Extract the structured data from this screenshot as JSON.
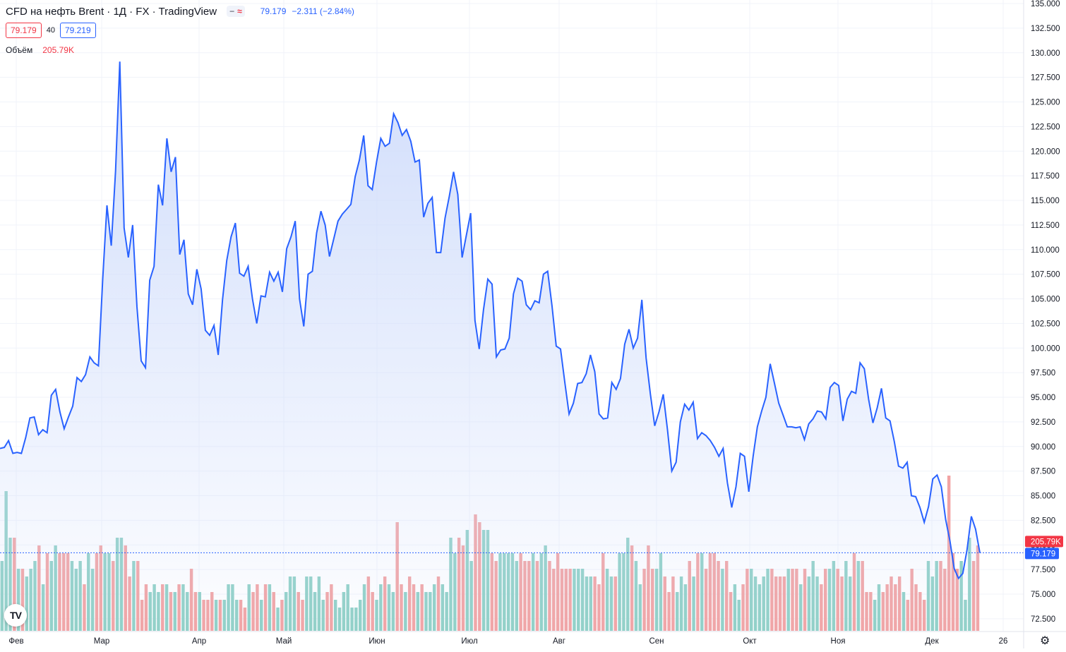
{
  "header": {
    "title": "CFD на нефть Brent · 1Д · FX  · TradingView",
    "pill_minus": "−",
    "pill_wave": "≈",
    "last_price": "79.179",
    "change": "−2.311 (−2.84%)"
  },
  "quote": {
    "bid": "79.179",
    "spread": "40",
    "ask": "79.219"
  },
  "volume": {
    "label": "Объём",
    "value": "205.79K"
  },
  "logo_text": "TV",
  "settings_icon": "gear-icon",
  "colors": {
    "line": "#2962ff",
    "area_top": "#cfdcfb",
    "vol_up": "#8fd0c6",
    "vol_down": "#f2a3a3",
    "tag_red": "#f23645",
    "tag_blue": "#2962ff"
  },
  "chart_data": {
    "type": "area",
    "symbol": "Brent CFD",
    "y_scale": "linear",
    "ylim": [
      70.5,
      135.5
    ],
    "y_ticks": [
      "72.500",
      "75.000",
      "77.500",
      "80.000",
      "82.500",
      "85.000",
      "87.500",
      "90.000",
      "92.500",
      "95.000",
      "97.500",
      "100.000",
      "102.500",
      "105.000",
      "107.500",
      "110.000",
      "112.500",
      "115.000",
      "117.500",
      "120.000",
      "122.500",
      "125.000",
      "127.500",
      "130.000",
      "132.500",
      "135.000"
    ],
    "x_ticks": [
      "Фев",
      "Мар",
      "Апр",
      "Май",
      "Июн",
      "Июл",
      "Авг",
      "Сен",
      "Окт",
      "Ноя",
      "Дек",
      "26"
    ],
    "last_price_tag": "79.179",
    "volume_tag": "205.79K",
    "price_series": [
      89.8,
      89.9,
      90.6,
      89.3,
      89.4,
      89.3,
      90.9,
      92.9,
      93.0,
      91.2,
      91.7,
      91.4,
      95.2,
      95.8,
      93.5,
      91.8,
      93.0,
      94.1,
      97.0,
      96.6,
      97.3,
      99.1,
      98.5,
      98.2,
      107.0,
      114.5,
      110.4,
      118.0,
      129.1,
      112.2,
      109.2,
      112.5,
      104.2,
      98.7,
      98.0,
      106.9,
      108.3,
      116.6,
      114.5,
      121.3,
      117.9,
      119.4,
      109.5,
      111.0,
      105.5,
      104.4,
      108.0,
      106.0,
      101.8,
      101.3,
      102.3,
      99.3,
      104.9,
      108.9,
      111.3,
      112.7,
      107.6,
      107.3,
      108.3,
      105.0,
      102.5,
      105.3,
      105.2,
      107.7,
      106.8,
      107.7,
      105.7,
      110.1,
      111.3,
      112.9,
      105.0,
      102.2,
      107.5,
      107.8,
      111.7,
      113.9,
      112.5,
      109.3,
      111.1,
      112.9,
      113.6,
      114.1,
      114.6,
      117.4,
      119.1,
      121.6,
      116.5,
      116.1,
      118.9,
      121.3,
      120.5,
      120.8,
      123.8,
      122.9,
      121.6,
      122.2,
      121.0,
      118.9,
      119.1,
      113.3,
      114.7,
      115.3,
      109.7,
      109.7,
      113.2,
      115.4,
      117.9,
      115.6,
      109.2,
      111.5,
      113.7,
      102.8,
      99.9,
      103.9,
      107.0,
      106.5,
      99.1,
      99.8,
      99.9,
      101.0,
      105.5,
      107.1,
      106.8,
      104.4,
      103.9,
      104.8,
      104.6,
      107.5,
      107.8,
      104.3,
      100.2,
      99.9,
      96.5,
      93.3,
      94.4,
      96.4,
      96.5,
      97.4,
      99.3,
      97.6,
      93.3,
      92.8,
      92.9,
      96.5,
      95.8,
      96.9,
      100.4,
      101.9,
      100.0,
      101.0,
      104.9,
      99.0,
      95.3,
      92.1,
      93.5,
      95.3,
      91.7,
      87.5,
      88.4,
      92.5,
      94.3,
      93.7,
      94.5,
      90.8,
      91.4,
      91.1,
      90.6,
      89.9,
      89.0,
      89.8,
      86.3,
      83.8,
      85.9,
      89.3,
      89.0,
      85.4,
      89.0,
      92.0,
      93.6,
      95.0,
      98.4,
      96.4,
      94.4,
      93.2,
      92.0,
      92.0,
      91.9,
      92.0,
      90.7,
      92.3,
      92.8,
      93.6,
      93.5,
      92.8,
      96.0,
      96.5,
      96.2,
      92.6,
      94.8,
      95.6,
      95.4,
      98.5,
      97.9,
      94.8,
      92.4,
      93.9,
      95.9,
      92.9,
      92.6,
      90.5,
      88.0,
      87.8,
      88.4,
      85.0,
      84.9,
      83.8,
      82.3,
      83.9,
      86.7,
      87.1,
      85.9,
      82.6,
      80.4,
      77.6,
      76.6,
      77.1,
      79.5,
      82.9,
      81.6,
      79.2
    ],
    "volume_series": [
      0.9,
      1.8,
      1.2,
      1.2,
      0.8,
      0.8,
      0.7,
      0.8,
      0.9,
      1.1,
      0.6,
      1.0,
      0.9,
      1.1,
      1.0,
      1.0,
      1.0,
      0.9,
      0.8,
      0.9,
      0.6,
      1.0,
      0.8,
      1.0,
      1.1,
      1.0,
      1.0,
      0.9,
      1.2,
      1.2,
      1.1,
      0.7,
      0.9,
      0.9,
      0.4,
      0.6,
      0.5,
      0.6,
      0.5,
      0.6,
      0.6,
      0.5,
      0.5,
      0.6,
      0.6,
      0.5,
      0.8,
      0.5,
      0.5,
      0.4,
      0.4,
      0.5,
      0.4,
      0.4,
      0.4,
      0.6,
      0.6,
      0.4,
      0.4,
      0.3,
      0.6,
      0.5,
      0.6,
      0.4,
      0.6,
      0.6,
      0.5,
      0.3,
      0.4,
      0.5,
      0.7,
      0.7,
      0.5,
      0.4,
      0.7,
      0.7,
      0.5,
      0.7,
      0.4,
      0.5,
      0.6,
      0.4,
      0.3,
      0.5,
      0.6,
      0.3,
      0.3,
      0.4,
      0.6,
      0.7,
      0.5,
      0.4,
      0.6,
      0.7,
      0.6,
      0.5,
      1.4,
      0.6,
      0.5,
      0.7,
      0.6,
      0.5,
      0.6,
      0.5,
      0.5,
      0.6,
      0.7,
      0.6,
      0.5,
      1.2,
      1.0,
      1.2,
      1.1,
      1.3,
      0.9,
      1.5,
      1.4,
      1.3,
      1.3,
      1.0,
      0.9,
      1.0,
      1.0,
      1.0,
      1.0,
      0.9,
      1.0,
      0.9,
      0.9,
      1.0,
      0.9,
      1.0,
      1.1,
      0.9,
      0.8,
      1.0,
      0.8,
      0.8,
      0.8,
      0.8,
      0.8,
      0.8,
      0.7,
      0.7,
      0.7,
      0.6,
      1.0,
      0.8,
      0.7,
      0.7,
      1.0,
      1.0,
      1.2,
      1.1,
      0.9,
      0.6,
      0.8,
      1.1,
      0.8,
      0.8,
      1.0,
      0.7,
      0.5,
      0.7,
      0.5,
      0.7,
      0.6,
      0.9,
      0.7,
      1.0,
      1.0,
      0.8,
      1.0,
      1.0,
      0.9,
      0.8,
      0.9,
      0.5,
      0.6,
      0.4,
      0.6,
      0.8,
      0.8,
      0.7,
      0.6,
      0.7,
      0.8,
      0.8,
      0.7,
      0.7,
      0.7,
      0.8,
      0.8,
      0.8,
      0.6,
      0.8,
      0.7,
      0.9,
      0.7,
      0.6,
      0.8,
      0.8,
      0.9,
      0.8,
      0.7,
      0.9,
      0.7,
      1.0,
      0.9,
      0.9,
      0.5,
      0.5,
      0.4,
      0.6,
      0.5,
      0.6,
      0.7,
      0.6,
      0.7,
      0.5,
      0.4,
      0.8,
      0.6,
      0.5,
      0.4,
      0.9,
      0.7,
      0.9,
      0.9,
      0.8,
      2.0,
      1.0,
      0.8,
      0.9,
      0.4,
      1.2,
      0.9,
      1.1
    ]
  }
}
